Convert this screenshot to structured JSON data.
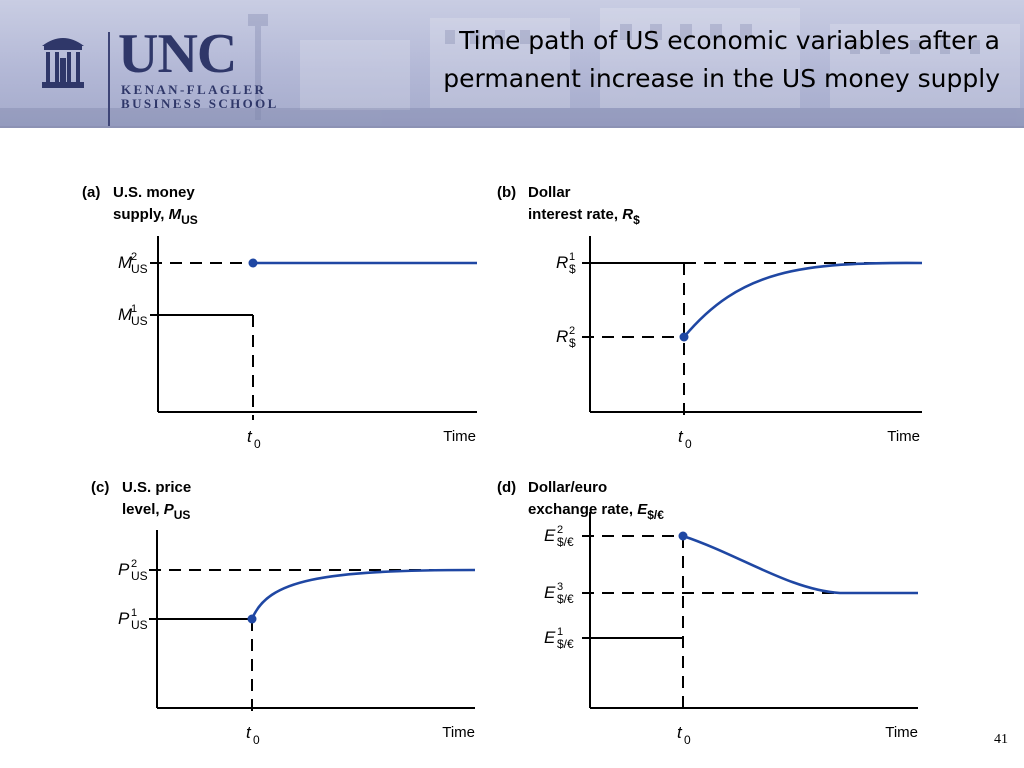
{
  "header": {
    "title_line1": "Time path of US economic variables after a",
    "title_line2": "permanent increase in the US money supply",
    "logo": {
      "main": "UNC",
      "line1": "KENAN-FLAGLER",
      "line2": "BUSINESS SCHOOL"
    }
  },
  "slide_number": "41",
  "colors": {
    "path": "#1f47a3",
    "axis": "#000000",
    "banner": "#b3b8d6",
    "logo_ink": "#2f3769"
  },
  "panels": [
    {
      "id": "a",
      "tag": "(a)",
      "heading_line1": "U.S. money",
      "heading_line2_prefix": "supply, ",
      "var": {
        "base": "M",
        "sub": "US"
      },
      "levels": [
        {
          "base": "M",
          "sup": "2",
          "sub": "US"
        },
        {
          "base": "M",
          "sup": "1",
          "sub": "US"
        }
      ],
      "time_mark": {
        "base": "t",
        "sub": "0"
      },
      "x_label": "Time"
    },
    {
      "id": "b",
      "tag": "(b)",
      "heading_line1": "Dollar",
      "heading_line2_prefix": "interest rate, ",
      "var": {
        "base": "R",
        "sub": "$"
      },
      "levels": [
        {
          "base": "R",
          "sup": "1",
          "sub": "$"
        },
        {
          "base": "R",
          "sup": "2",
          "sub": "$"
        }
      ],
      "time_mark": {
        "base": "t",
        "sub": "0"
      },
      "x_label": "Time"
    },
    {
      "id": "c",
      "tag": "(c)",
      "heading_line1": "U.S. price",
      "heading_line2_prefix": "level, ",
      "var": {
        "base": "P",
        "sub": "US"
      },
      "levels": [
        {
          "base": "P",
          "sup": "2",
          "sub": "US"
        },
        {
          "base": "P",
          "sup": "1",
          "sub": "US"
        }
      ],
      "time_mark": {
        "base": "t",
        "sub": "0"
      },
      "x_label": "Time"
    },
    {
      "id": "d",
      "tag": "(d)",
      "heading_line1": "Dollar/euro",
      "heading_line2_prefix": "exchange rate, ",
      "var": {
        "base": "E",
        "sub": "$/€"
      },
      "levels": [
        {
          "base": "E",
          "sup": "2",
          "sub": "$/€"
        },
        {
          "base": "E",
          "sup": "3",
          "sub": "$/€"
        },
        {
          "base": "E",
          "sup": "1",
          "sub": "$/€"
        }
      ],
      "time_mark": {
        "base": "t",
        "sub": "0"
      },
      "x_label": "Time"
    }
  ]
}
